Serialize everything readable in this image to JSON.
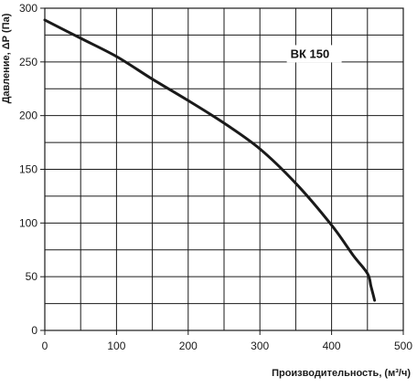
{
  "chart_data": {
    "type": "line",
    "title": "",
    "xlabel": "Производительность, (м³/ч)",
    "ylabel": "Давление, ΔР (Па)",
    "xlim": [
      0,
      500
    ],
    "ylim": [
      0,
      300
    ],
    "x_ticks": [
      0,
      100,
      200,
      300,
      400,
      500
    ],
    "y_ticks": [
      0,
      50,
      100,
      150,
      200,
      250,
      300
    ],
    "x_tick_labels": [
      "0",
      "100",
      "200",
      "300",
      "400",
      "500"
    ],
    "y_tick_labels": [
      "0",
      "50",
      "100",
      "150",
      "200",
      "250",
      "300"
    ],
    "grid": true,
    "grid_minor_x": [
      50,
      150,
      250,
      350,
      450
    ],
    "grid_minor_y": [
      25,
      75,
      125,
      175,
      225,
      275
    ],
    "legend": "none",
    "series": [
      {
        "name": "ВК 150",
        "label_at": [
          400,
          258
        ],
        "x": [
          0,
          50,
          100,
          150,
          200,
          250,
          300,
          350,
          400,
          430,
          450,
          455,
          460
        ],
        "y": [
          289,
          272,
          255,
          234,
          214,
          193,
          169,
          137,
          98,
          70,
          53,
          41,
          28
        ]
      }
    ],
    "colors": {
      "line": "#1a1a1a",
      "grid": "#1a1a1a",
      "text": "#1a1a1a"
    }
  }
}
